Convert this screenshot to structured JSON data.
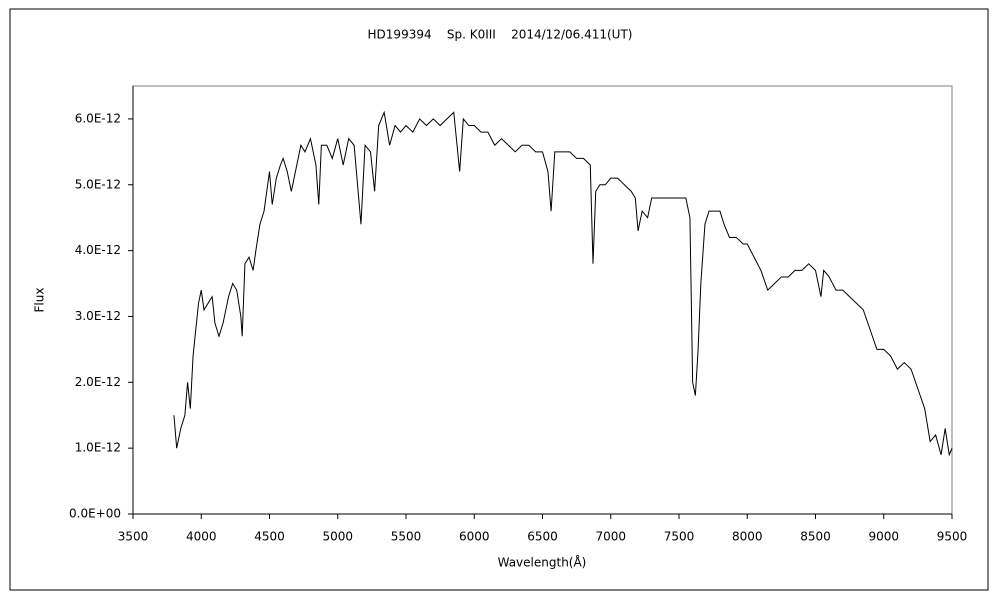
{
  "chart_data": {
    "type": "line",
    "title": "HD199394    Sp. K0III    2014/12/06.411(UT)",
    "x_label": "Wavelength(Å)",
    "y_label": "Flux",
    "color": "#000000",
    "x": [
      3800,
      3820,
      3850,
      3880,
      3900,
      3920,
      3940,
      3960,
      3980,
      4000,
      4020,
      4050,
      4080,
      4100,
      4130,
      4160,
      4200,
      4230,
      4260,
      4290,
      4300,
      4320,
      4350,
      4380,
      4400,
      4430,
      4460,
      4480,
      4500,
      4520,
      4550,
      4580,
      4600,
      4630,
      4660,
      4700,
      4730,
      4760,
      4800,
      4840,
      4861,
      4880,
      4920,
      4960,
      5000,
      5040,
      5080,
      5120,
      5170,
      5200,
      5240,
      5270,
      5300,
      5340,
      5380,
      5420,
      5460,
      5500,
      5550,
      5600,
      5650,
      5700,
      5750,
      5800,
      5850,
      5893,
      5920,
      5960,
      6000,
      6050,
      6100,
      6150,
      6200,
      6250,
      6300,
      6350,
      6400,
      6450,
      6500,
      6540,
      6563,
      6590,
      6650,
      6700,
      6750,
      6800,
      6850,
      6870,
      6890,
      6920,
      6960,
      7000,
      7050,
      7100,
      7150,
      7180,
      7200,
      7230,
      7270,
      7300,
      7350,
      7400,
      7450,
      7500,
      7550,
      7580,
      7600,
      7620,
      7640,
      7660,
      7690,
      7720,
      7760,
      7800,
      7830,
      7870,
      7920,
      7970,
      8000,
      8050,
      8100,
      8150,
      8200,
      8250,
      8300,
      8350,
      8400,
      8450,
      8500,
      8540,
      8560,
      8600,
      8650,
      8700,
      8750,
      8800,
      8850,
      8900,
      8950,
      9000,
      9050,
      9100,
      9150,
      9200,
      9250,
      9300,
      9340,
      9380,
      9420,
      9450,
      9480,
      9500
    ],
    "values": [
      1.5e-12,
      1e-12,
      1.3e-12,
      1.5e-12,
      2e-12,
      1.6e-12,
      2.4e-12,
      2.8e-12,
      3.2e-12,
      3.4e-12,
      3.1e-12,
      3.2e-12,
      3.3e-12,
      2.9e-12,
      2.7e-12,
      2.9e-12,
      3.3e-12,
      3.5e-12,
      3.4e-12,
      3e-12,
      2.7e-12,
      3.8e-12,
      3.9e-12,
      3.7e-12,
      4e-12,
      4.4e-12,
      4.6e-12,
      4.9e-12,
      5.2e-12,
      4.7e-12,
      5.1e-12,
      5.3e-12,
      5.4e-12,
      5.2e-12,
      4.9e-12,
      5.3e-12,
      5.6e-12,
      5.5e-12,
      5.7e-12,
      5.3e-12,
      4.7e-12,
      5.6e-12,
      5.6e-12,
      5.4e-12,
      5.7e-12,
      5.3e-12,
      5.7e-12,
      5.6e-12,
      4.4e-12,
      5.6e-12,
      5.5e-12,
      4.9e-12,
      5.9e-12,
      6.1e-12,
      5.6e-12,
      5.9e-12,
      5.8e-12,
      5.9e-12,
      5.8e-12,
      6e-12,
      5.9e-12,
      6e-12,
      5.9e-12,
      6e-12,
      6.1e-12,
      5.2e-12,
      6e-12,
      5.9e-12,
      5.9e-12,
      5.8e-12,
      5.8e-12,
      5.6e-12,
      5.7e-12,
      5.6e-12,
      5.5e-12,
      5.6e-12,
      5.6e-12,
      5.5e-12,
      5.5e-12,
      5.2e-12,
      4.6e-12,
      5.5e-12,
      5.5e-12,
      5.5e-12,
      5.4e-12,
      5.4e-12,
      5.3e-12,
      3.8e-12,
      4.9e-12,
      5e-12,
      5e-12,
      5.1e-12,
      5.1e-12,
      5e-12,
      4.9e-12,
      4.8e-12,
      4.3e-12,
      4.6e-12,
      4.5e-12,
      4.8e-12,
      4.8e-12,
      4.8e-12,
      4.8e-12,
      4.8e-12,
      4.8e-12,
      4.5e-12,
      2e-12,
      1.8e-12,
      2.5e-12,
      3.5e-12,
      4.4e-12,
      4.6e-12,
      4.6e-12,
      4.6e-12,
      4.4e-12,
      4.2e-12,
      4.2e-12,
      4.1e-12,
      4.1e-12,
      3.9e-12,
      3.7e-12,
      3.4e-12,
      3.5e-12,
      3.6e-12,
      3.6e-12,
      3.7e-12,
      3.7e-12,
      3.8e-12,
      3.7e-12,
      3.3e-12,
      3.7e-12,
      3.6e-12,
      3.4e-12,
      3.4e-12,
      3.3e-12,
      3.2e-12,
      3.1e-12,
      2.8e-12,
      2.5e-12,
      2.5e-12,
      2.4e-12,
      2.2e-12,
      2.3e-12,
      2.2e-12,
      1.9e-12,
      1.6e-12,
      1.1e-12,
      1.2e-12,
      9e-13,
      1.3e-12,
      9e-13,
      1e-12
    ],
    "xlim": [
      3500,
      9500
    ],
    "xticks": [
      3500,
      4000,
      4500,
      5000,
      5500,
      6000,
      6500,
      7000,
      7500,
      8000,
      8500,
      9000,
      9500
    ],
    "ylim": [
      0,
      6.5e-12
    ],
    "yticks": [
      {
        "value": 0,
        "label": "0.0E+00"
      },
      {
        "value": 1e-12,
        "label": "1.0E-12"
      },
      {
        "value": 2e-12,
        "label": "2.0E-12"
      },
      {
        "value": 3e-12,
        "label": "3.0E-12"
      },
      {
        "value": 4e-12,
        "label": "4.0E-12"
      },
      {
        "value": 5e-12,
        "label": "5.0E-12"
      },
      {
        "value": 6e-12,
        "label": "6.0E-12"
      }
    ]
  }
}
